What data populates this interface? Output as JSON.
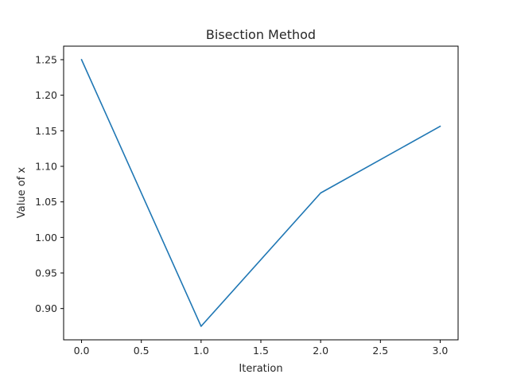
{
  "chart_data": {
    "type": "line",
    "title": "Bisection Method",
    "xlabel": "Iteration",
    "ylabel": "Value of x",
    "xlim": [
      -0.15,
      3.15
    ],
    "ylim": [
      0.856,
      1.269
    ],
    "xticks": [
      0.0,
      0.5,
      1.0,
      1.5,
      2.0,
      2.5,
      3.0
    ],
    "xtick_labels": [
      "0.0",
      "0.5",
      "1.0",
      "1.5",
      "2.0",
      "2.5",
      "3.0"
    ],
    "yticks": [
      0.9,
      0.95,
      1.0,
      1.05,
      1.1,
      1.15,
      1.2,
      1.25
    ],
    "ytick_labels": [
      "0.90",
      "0.95",
      "1.00",
      "1.05",
      "1.10",
      "1.15",
      "1.20",
      "1.25"
    ],
    "grid": false,
    "series": [
      {
        "x": [
          0,
          1,
          2,
          3
        ],
        "values": [
          1.25,
          0.875,
          1.0625,
          1.15625
        ],
        "color": "#1f77b4"
      }
    ]
  }
}
